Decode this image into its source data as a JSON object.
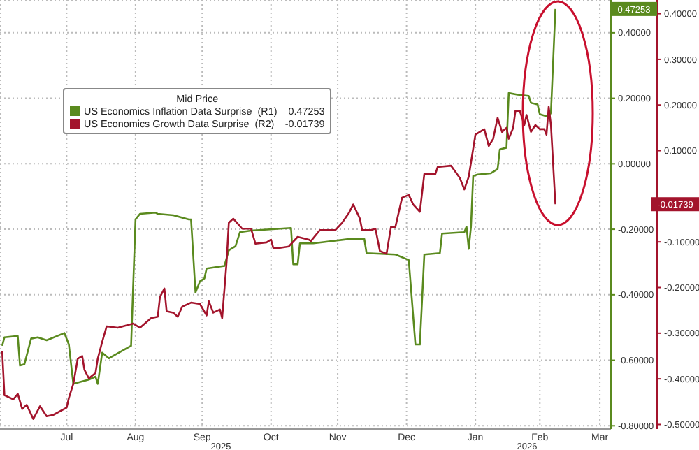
{
  "chart_data": {
    "type": "line",
    "legend_title": "Mid Price",
    "legend": "top left",
    "grid": true,
    "marker": "none",
    "line_style": "solid",
    "xlim": [
      "2025-06-16",
      "2026-03-18"
    ],
    "xticks": [
      {
        "value": "2025-07-16",
        "label": "Jul"
      },
      {
        "value": "2025-08-16",
        "label": "Aug"
      },
      {
        "value": "2025-09-15",
        "label": "Sep"
      },
      {
        "value": "2025-10-16",
        "label": "Oct"
      },
      {
        "value": "2025-11-15",
        "label": "Nov"
      },
      {
        "value": "2025-12-16",
        "label": "Dec"
      },
      {
        "value": "2026-01-16",
        "label": "Jan"
      },
      {
        "value": "2026-02-14",
        "label": "Feb"
      },
      {
        "value": "2026-03-13",
        "label": "Mar"
      }
    ],
    "ylim": [
      -0.81,
      0.5
    ],
    "yticks": [
      {
        "value": -0.8,
        "label": "-0.80000"
      },
      {
        "value": -0.6,
        "label": "-0.60000"
      },
      {
        "value": -0.4,
        "label": "-0.40000"
      },
      {
        "value": -0.2,
        "label": "-0.20000"
      },
      {
        "value": 0,
        "label": "0.00000"
      },
      {
        "value": 0.2,
        "label": "0.20000"
      },
      {
        "value": 0.4,
        "label": "0.40000"
      }
    ],
    "y2lim": [
      -0.51,
      0.43
    ],
    "y2ticks": [
      {
        "value": -0.5,
        "label": "-0.50000"
      },
      {
        "value": -0.4,
        "label": "-0.40000"
      },
      {
        "value": -0.3,
        "label": "-0.30000"
      },
      {
        "value": -0.2,
        "label": "-0.20000"
      },
      {
        "value": -0.1,
        "label": "-0.10000"
      },
      {
        "value": 0.1,
        "label": "0.10000"
      },
      {
        "value": 0.2,
        "label": "0.20000"
      },
      {
        "value": 0.3,
        "label": "0.30000"
      },
      {
        "value": 0.4,
        "label": "0.40000"
      }
    ],
    "annotations": [
      "2025",
      "2026",
      "0.47253",
      "-0.01739"
    ],
    "series": [
      {
        "name": "US Economics Inflation Data Surprise  (R1)",
        "color": "#5a8a1e",
        "axis": "y",
        "x": [
          "2025-06-17",
          "2025-06-18",
          "2025-06-24",
          "2025-06-25",
          "2025-06-27",
          "2025-06-30",
          "2025-07-03",
          "2025-07-07",
          "2025-07-15",
          "2025-07-17",
          "2025-07-19",
          "2025-07-26",
          "2025-07-29",
          "2025-07-30",
          "2025-08-01",
          "2025-08-04",
          "2025-08-14",
          "2025-08-16",
          "2025-08-18",
          "2025-08-25",
          "2025-08-26",
          "2025-09-02",
          "2025-09-09",
          "2025-09-10",
          "2025-09-12",
          "2025-09-14",
          "2025-09-16",
          "2025-09-17",
          "2025-09-25",
          "2025-09-27",
          "2025-09-30",
          "2025-10-02",
          "2025-10-07",
          "2025-10-25",
          "2025-10-26",
          "2025-10-28",
          "2025-10-29",
          "2025-11-04",
          "2025-11-20",
          "2025-11-27",
          "2025-11-28",
          "2025-12-11",
          "2025-12-17",
          "2025-12-20",
          "2025-12-22",
          "2025-12-24",
          "2025-12-31",
          "2026-01-01",
          "2026-01-11",
          "2026-01-12",
          "2026-01-13",
          "2026-01-14",
          "2026-01-15",
          "2026-01-17",
          "2026-01-23",
          "2026-01-26",
          "2026-01-27",
          "2026-01-30",
          "2026-01-31",
          "2026-02-04",
          "2026-02-09",
          "2026-02-10",
          "2026-02-13",
          "2026-02-14",
          "2026-02-18",
          "2026-02-19",
          "2026-02-21"
        ],
        "values": [
          -0.556,
          -0.53,
          -0.526,
          -0.616,
          -0.612,
          -0.534,
          -0.53,
          -0.539,
          -0.517,
          -0.552,
          -0.672,
          -0.659,
          -0.65,
          -0.672,
          -0.577,
          -0.594,
          -0.556,
          -0.17,
          -0.153,
          -0.149,
          -0.153,
          -0.157,
          -0.17,
          -0.17,
          -0.393,
          -0.359,
          -0.35,
          -0.32,
          -0.312,
          -0.264,
          -0.252,
          -0.209,
          -0.204,
          -0.196,
          -0.307,
          -0.307,
          -0.243,
          -0.243,
          -0.23,
          -0.23,
          -0.273,
          -0.277,
          -0.294,
          -0.552,
          -0.552,
          -0.277,
          -0.273,
          -0.213,
          -0.209,
          -0.192,
          -0.26,
          -0.192,
          -0.037,
          -0.033,
          -0.029,
          -0.016,
          0.044,
          0.049,
          0.216,
          0.211,
          0.207,
          0.186,
          0.181,
          0.151,
          0.143,
          0.156,
          0.47253
        ]
      },
      {
        "name": "US Economics Growth Data Surprise  (R2)",
        "color": "#a3142c",
        "axis": "y2",
        "x": [
          "2025-06-17",
          "2025-06-18",
          "2025-06-22",
          "2025-06-24",
          "2025-06-26",
          "2025-06-28",
          "2025-07-01",
          "2025-07-04",
          "2025-07-07",
          "2025-07-10",
          "2025-07-16",
          "2025-07-17",
          "2025-07-19",
          "2025-07-21",
          "2025-07-23",
          "2025-07-24",
          "2025-07-26",
          "2025-07-29",
          "2025-07-30",
          "2025-08-01",
          "2025-08-03",
          "2025-08-08",
          "2025-08-15",
          "2025-08-18",
          "2025-08-23",
          "2025-08-26",
          "2025-08-27",
          "2025-08-29",
          "2025-08-30",
          "2025-09-02",
          "2025-09-04",
          "2025-09-06",
          "2025-09-10",
          "2025-09-14",
          "2025-09-17",
          "2025-09-18",
          "2025-09-20",
          "2025-09-23",
          "2025-09-24",
          "2025-09-26",
          "2025-09-27",
          "2025-09-29",
          "2025-10-03",
          "2025-10-07",
          "2025-10-09",
          "2025-10-14",
          "2025-10-16",
          "2025-10-17",
          "2025-10-20",
          "2025-10-24",
          "2025-10-28",
          "2025-11-02",
          "2025-11-03",
          "2025-11-07",
          "2025-11-14",
          "2025-11-17",
          "2025-11-20",
          "2025-11-22",
          "2025-11-25",
          "2025-11-26",
          "2025-11-30",
          "2025-12-02",
          "2025-12-04",
          "2025-12-07",
          "2025-12-09",
          "2025-12-11",
          "2025-12-14",
          "2025-12-17",
          "2025-12-19",
          "2025-12-22",
          "2025-12-24",
          "2025-12-29",
          "2025-12-30",
          "2026-01-05",
          "2026-01-09",
          "2026-01-11",
          "2026-01-13",
          "2026-01-16",
          "2026-01-20",
          "2026-01-22",
          "2026-01-24",
          "2026-01-26",
          "2026-01-28",
          "2026-01-30",
          "2026-01-31",
          "2026-02-02",
          "2026-02-03",
          "2026-02-05",
          "2026-02-07",
          "2026-02-08",
          "2026-02-10",
          "2026-02-12",
          "2026-02-14",
          "2026-02-16",
          "2026-02-17",
          "2026-02-18",
          "2026-02-19",
          "2026-02-21"
        ],
        "values": [
          -0.34,
          -0.436,
          -0.445,
          -0.433,
          -0.466,
          -0.457,
          -0.488,
          -0.46,
          -0.482,
          -0.479,
          -0.463,
          -0.442,
          -0.411,
          -0.356,
          -0.35,
          -0.38,
          -0.399,
          -0.387,
          -0.356,
          -0.319,
          -0.285,
          -0.288,
          -0.279,
          -0.288,
          -0.267,
          -0.264,
          -0.221,
          -0.202,
          -0.252,
          -0.255,
          -0.264,
          -0.242,
          -0.233,
          -0.236,
          -0.261,
          -0.23,
          -0.255,
          -0.248,
          -0.267,
          -0.144,
          -0.058,
          -0.049,
          -0.071,
          -0.071,
          -0.104,
          -0.101,
          -0.095,
          -0.113,
          -0.113,
          -0.11,
          -0.089,
          -0.095,
          -0.098,
          -0.074,
          -0.074,
          -0.058,
          -0.037,
          -0.018,
          -0.049,
          -0.074,
          -0.074,
          -0.071,
          -0.12,
          -0.126,
          -0.067,
          -0.067,
          -0.003,
          0.003,
          -0.018,
          -0.034,
          0.049,
          0.049,
          0.064,
          0.067,
          0.04,
          0.015,
          0.043,
          0.135,
          0.147,
          0.11,
          0.126,
          0.172,
          0.141,
          0.15,
          0.126,
          0.15,
          0.187,
          0.187,
          0.156,
          0.178,
          0.141,
          0.156,
          0.147,
          0.147,
          0.135,
          0.196,
          0.156,
          -0.01739
        ]
      }
    ]
  }
}
